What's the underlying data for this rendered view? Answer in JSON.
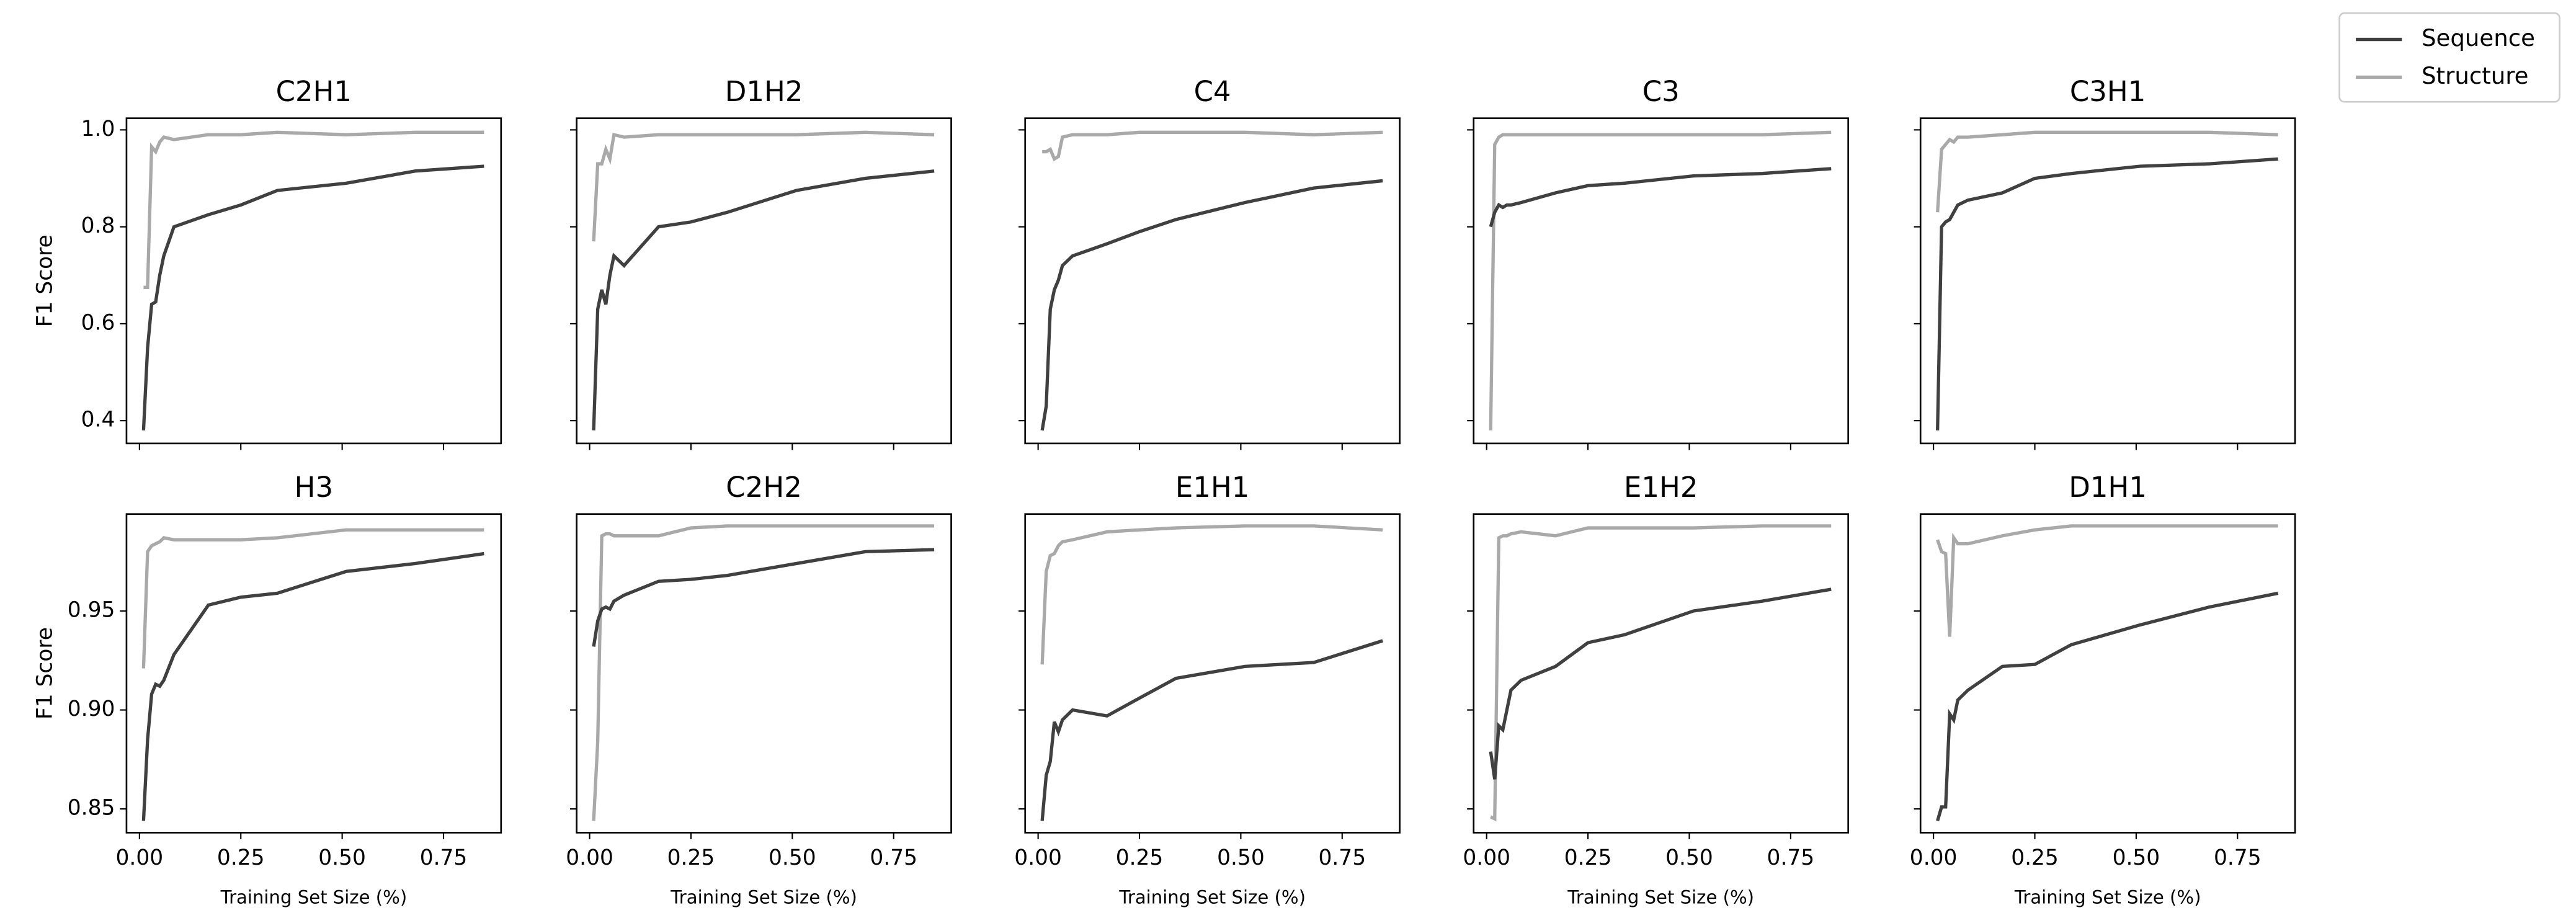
{
  "chart_data": {
    "type": "line",
    "xlabel": "Training Set Size (%)",
    "x": [
      0.01,
      0.02,
      0.03,
      0.04,
      0.05,
      0.06,
      0.085,
      0.17,
      0.25,
      0.34,
      0.51,
      0.68,
      0.85
    ],
    "xlim": [
      -0.032,
      0.892
    ],
    "xticks": [
      {
        "value": 0,
        "label": "0.00"
      },
      {
        "value": 0.25,
        "label": "0.25"
      },
      {
        "value": 0.5,
        "label": "0.50"
      },
      {
        "value": 0.75,
        "label": "0.75"
      }
    ],
    "legend_position": "upper right",
    "series": [
      {
        "name": "Sequence",
        "color": "#404040"
      },
      {
        "name": "Structure",
        "color": "#a9a9a9"
      }
    ],
    "rows": [
      {
        "ylabel": "F1 Score",
        "ylim": [
          0.353,
          1.024
        ],
        "yticks": [
          0.4,
          0.6,
          0.8,
          {
            "value": 1,
            "label": "1.0"
          }
        ],
        "panels": [
          {
            "title": "C2H1",
            "values": [
              [
                0.38,
                0.55,
                0.64,
                0.645,
                0.7,
                0.74,
                0.8,
                0.825,
                0.845,
                0.875,
                0.89,
                0.915,
                0.925
              ],
              [
                0.675,
                0.675,
                0.965,
                0.955,
                0.975,
                0.985,
                0.98,
                0.99,
                0.99,
                0.995,
                0.99,
                0.995,
                0.995
              ]
            ]
          },
          {
            "title": "D1H2",
            "values": [
              [
                0.38,
                0.63,
                0.67,
                0.64,
                0.7,
                0.74,
                0.72,
                0.8,
                0.81,
                0.83,
                0.875,
                0.9,
                0.915
              ],
              [
                0.77,
                0.93,
                0.93,
                0.96,
                0.94,
                0.99,
                0.985,
                0.99,
                0.99,
                0.99,
                0.99,
                0.995,
                0.99
              ]
            ]
          },
          {
            "title": "C4",
            "values": [
              [
                0.38,
                0.43,
                0.63,
                0.67,
                0.69,
                0.72,
                0.74,
                0.765,
                0.79,
                0.815,
                0.85,
                0.88,
                0.895
              ],
              [
                0.955,
                0.955,
                0.96,
                0.94,
                0.945,
                0.985,
                0.99,
                0.99,
                0.995,
                0.995,
                0.995,
                0.99,
                0.995
              ]
            ]
          },
          {
            "title": "C3",
            "values": [
              [
                0.8,
                0.83,
                0.845,
                0.84,
                0.845,
                0.845,
                0.85,
                0.87,
                0.885,
                0.89,
                0.905,
                0.91,
                0.92
              ],
              [
                0.38,
                0.97,
                0.985,
                0.99,
                0.99,
                0.99,
                0.99,
                0.99,
                0.99,
                0.99,
                0.99,
                0.99,
                0.995
              ]
            ]
          },
          {
            "title": "C3H1",
            "values": [
              [
                0.38,
                0.8,
                0.81,
                0.815,
                0.83,
                0.845,
                0.855,
                0.87,
                0.9,
                0.91,
                0.925,
                0.93,
                0.94
              ],
              [
                0.83,
                0.96,
                0.97,
                0.98,
                0.975,
                0.985,
                0.985,
                0.99,
                0.995,
                0.995,
                0.995,
                0.995,
                0.99
              ]
            ]
          }
        ]
      },
      {
        "ylabel": "F1 Score",
        "ylim": [
          0.838,
          0.999
        ],
        "yticks": [
          0.85,
          {
            "value": 0.9,
            "label": "0.90"
          },
          0.95
        ],
        "panels": [
          {
            "title": "H3",
            "values": [
              [
                0.844,
                0.885,
                0.908,
                0.913,
                0.912,
                0.915,
                0.928,
                0.953,
                0.957,
                0.959,
                0.97,
                0.974,
                0.979
              ],
              [
                0.921,
                0.98,
                0.983,
                0.984,
                0.985,
                0.987,
                0.986,
                0.986,
                0.986,
                0.987,
                0.991,
                0.991,
                0.991
              ]
            ]
          },
          {
            "title": "C2H2",
            "values": [
              [
                0.932,
                0.945,
                0.951,
                0.952,
                0.951,
                0.955,
                0.958,
                0.965,
                0.966,
                0.968,
                0.974,
                0.98,
                0.981
              ],
              [
                0.844,
                0.884,
                0.988,
                0.989,
                0.989,
                0.988,
                0.988,
                0.988,
                0.992,
                0.993,
                0.993,
                0.993,
                0.993
              ]
            ]
          },
          {
            "title": "E1H1",
            "values": [
              [
                0.844,
                0.867,
                0.874,
                0.894,
                0.889,
                0.895,
                0.9,
                0.897,
                0.906,
                0.916,
                0.922,
                0.924,
                0.935
              ],
              [
                0.923,
                0.97,
                0.978,
                0.979,
                0.983,
                0.985,
                0.986,
                0.99,
                0.991,
                0.992,
                0.993,
                0.993,
                0.991
              ]
            ]
          },
          {
            "title": "E1H2",
            "values": [
              [
                0.879,
                0.865,
                0.892,
                0.89,
                0.9,
                0.91,
                0.915,
                0.922,
                0.934,
                0.938,
                0.95,
                0.955,
                0.961
              ],
              [
                0.846,
                0.845,
                0.987,
                0.988,
                0.988,
                0.989,
                0.99,
                0.988,
                0.992,
                0.992,
                0.992,
                0.993,
                0.993
              ]
            ]
          },
          {
            "title": "D1H1",
            "values": [
              [
                0.844,
                0.851,
                0.851,
                0.898,
                0.895,
                0.905,
                0.91,
                0.922,
                0.923,
                0.933,
                0.943,
                0.952,
                0.959
              ],
              [
                0.986,
                0.98,
                0.979,
                0.937,
                0.987,
                0.984,
                0.984,
                0.988,
                0.991,
                0.993,
                0.993,
                0.993,
                0.993
              ]
            ]
          }
        ]
      }
    ]
  }
}
